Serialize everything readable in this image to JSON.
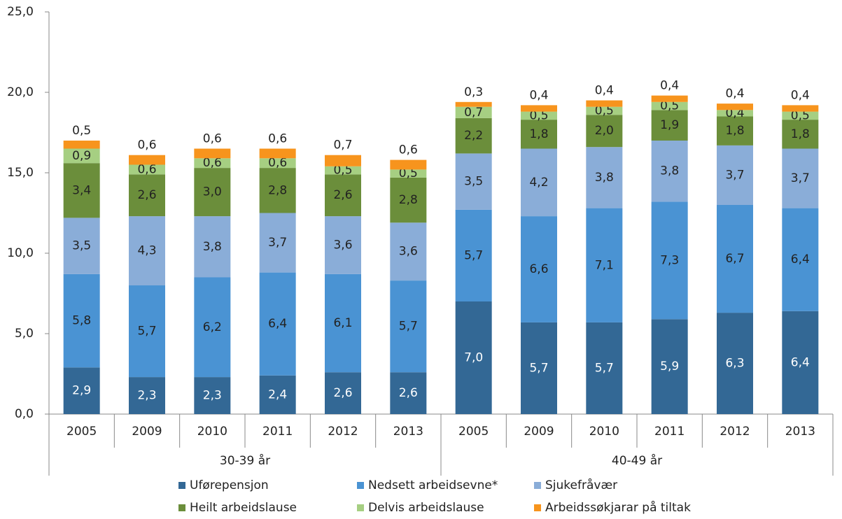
{
  "chart_data": {
    "type": "stacked_bar",
    "categories": [
      "2005",
      "2009",
      "2010",
      "2011",
      "2012",
      "2013",
      "2005",
      "2009",
      "2010",
      "2011",
      "2012",
      "2013"
    ],
    "groups": [
      "30-39 år",
      "40-49 år"
    ],
    "ylim": [
      0,
      25
    ],
    "yticks": [
      {
        "value": 0,
        "label": "0,0"
      },
      {
        "value": 5,
        "label": "5,0"
      },
      {
        "value": 10,
        "label": "10,0"
      },
      {
        "value": 15,
        "label": "15,0"
      },
      {
        "value": 20,
        "label": "20,0"
      },
      {
        "value": 25,
        "label": "25,0"
      }
    ],
    "series": [
      {
        "name": "Uførepensjon",
        "color": "#336895",
        "values": [
          2.9,
          2.3,
          2.3,
          2.4,
          2.6,
          2.6,
          7.0,
          5.7,
          5.7,
          5.9,
          6.3,
          6.4
        ],
        "value_labels": [
          "2,9",
          "2,3",
          "2,3",
          "2,4",
          "2,6",
          "2,6",
          "7,0",
          "5,7",
          "5,7",
          "5,9",
          "6,3",
          "6,4"
        ]
      },
      {
        "name": "Nedsett arbeidsevne*",
        "color": "#4a93d3",
        "values": [
          5.8,
          5.7,
          6.2,
          6.4,
          6.1,
          5.7,
          5.7,
          6.6,
          7.1,
          7.3,
          6.7,
          6.4
        ],
        "value_labels": [
          "5,8",
          "5,7",
          "6,2",
          "6,4",
          "6,1",
          "5,7",
          "5,7",
          "6,6",
          "7,1",
          "7,3",
          "6,7",
          "6,4"
        ]
      },
      {
        "name": "Sjukefråvær",
        "color": "#8aadd8",
        "values": [
          3.5,
          4.3,
          3.8,
          3.7,
          3.6,
          3.6,
          3.5,
          4.2,
          3.8,
          3.8,
          3.7,
          3.7
        ],
        "value_labels": [
          "3,5",
          "4,3",
          "3,8",
          "3,7",
          "3,6",
          "3,6",
          "3,5",
          "4,2",
          "3,8",
          "3,8",
          "3,7",
          "3,7"
        ]
      },
      {
        "name": "Heilt arbeidslause",
        "color": "#6b8e3b",
        "values": [
          3.4,
          2.6,
          3.0,
          2.8,
          2.6,
          2.8,
          2.2,
          1.8,
          2.0,
          1.9,
          1.8,
          1.8
        ],
        "value_labels": [
          "3,4",
          "2,6",
          "3,0",
          "2,8",
          "2,6",
          "2,8",
          "2,2",
          "1,8",
          "2,0",
          "1,9",
          "1,8",
          "1,8"
        ]
      },
      {
        "name": "Delvis arbeidslause",
        "color": "#a6cf82",
        "values": [
          0.9,
          0.6,
          0.6,
          0.6,
          0.5,
          0.5,
          0.7,
          0.5,
          0.5,
          0.5,
          0.4,
          0.5
        ],
        "value_labels": [
          "0,9",
          "0,6",
          "0,6",
          "0,6",
          "0,5",
          "0,5",
          "0,7",
          "0,5",
          "0,5",
          "0,5",
          "0,4",
          "0,5"
        ]
      },
      {
        "name": "Arbeidssøkjarar på tiltak",
        "color": "#f7941d",
        "values": [
          0.5,
          0.6,
          0.6,
          0.6,
          0.7,
          0.6,
          0.3,
          0.4,
          0.4,
          0.4,
          0.4,
          0.4
        ],
        "value_labels": [
          "0,5",
          "0,6",
          "0,6",
          "0,6",
          "0,7",
          "0,6",
          "0,3",
          "0,4",
          "0,4",
          "0,4",
          "0,4",
          "0,4"
        ]
      }
    ]
  }
}
